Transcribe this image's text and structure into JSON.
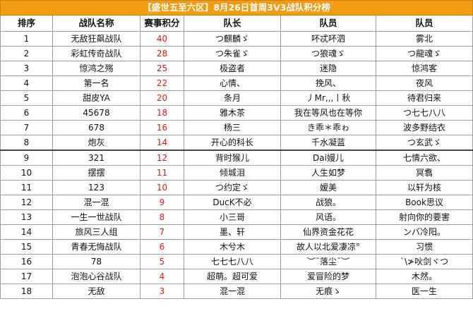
{
  "title": "【盛世五至六区】8月26日首周3V3战队积分榜",
  "headers": [
    "排序",
    "战队名称",
    "赛事积分",
    "队长",
    "队员",
    "队员"
  ],
  "rows": [
    [
      "1",
      "无敌狂飙战队",
      "40",
      "つ麒麟ゞ",
      "吥忒吥泗",
      "雾北"
    ],
    [
      "2",
      "彩虹传奇战队",
      "28",
      "つ朱雀ゞ",
      "つ狼魂ゞ",
      "つ龍魂ゞ"
    ],
    [
      "3",
      "惊鸿之殇",
      "25",
      "极盗者",
      "迷隐",
      "惊鸿客"
    ],
    [
      "4",
      "第一名",
      "22",
      "心情、",
      "挽风、",
      "夜风"
    ],
    [
      "5",
      "甜皮YA",
      "20",
      "条月",
      "丿Mr,,,丨秋",
      "待君归来"
    ],
    [
      "6",
      "45678",
      "18",
      "雅木茶",
      "我在等风也在等你",
      "つ七七八八"
    ],
    [
      "7",
      "678",
      "16",
      "杨三",
      "き乖＊乖ゎ",
      "波多野结衣"
    ],
    [
      "8",
      "炮灰",
      "14",
      "开心的科长",
      "千水凝蓝",
      "つ玄武ゞ"
    ],
    [
      "9",
      "321",
      "12",
      "背时猴儿",
      "Dai嫚儿",
      "七情六欲、"
    ],
    [
      "10",
      "摆摆",
      "11",
      "倾城泪",
      "人生如梦",
      "冥翥"
    ],
    [
      "11",
      "123",
      "10",
      "つ约定ゞ",
      "嫒美",
      "以轩为核"
    ],
    [
      "12",
      "混一混",
      "9",
      "DucK不必",
      "战狼。",
      "Book思议"
    ],
    [
      "13",
      "一生一世战队",
      "8",
      "小三哥",
      "风语。",
      "射向你的要害"
    ],
    [
      "14",
      "旅风三人组",
      "7",
      "墨、轩",
      "仙界资金花花",
      "ンバ冷阳。"
    ],
    [
      "15",
      "青春无悔战队",
      "6",
      "木兮木",
      "故人以北爱凄凉°",
      "习惯"
    ],
    [
      "16",
      "78",
      "5",
      "七七七八八",
      "︶ˉ落尘ˉ︶",
      "ˋ\\≯吙剑ヾつ"
    ],
    [
      "17",
      "泡泡心谷战队",
      "4",
      "超萌。超可爱",
      "爱冒险的梦",
      "木然。"
    ],
    [
      "18",
      "无敌",
      "3",
      "混一混",
      "无痕ゝ",
      "医一生"
    ]
  ],
  "colors": {
    "title_bg": "#f39c12",
    "score_text": "#e8180c",
    "grid": "#9e9e9e"
  }
}
